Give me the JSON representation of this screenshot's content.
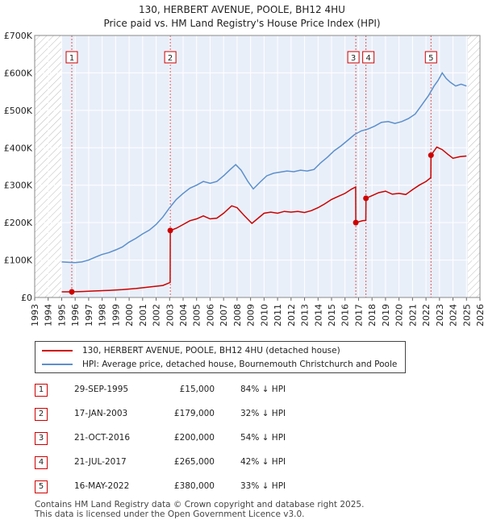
{
  "chart_data": {
    "type": "line",
    "title": "130, HERBERT AVENUE, POOLE, BH12 4HU",
    "subtitle": "Price paid vs. HM Land Registry's House Price Index (HPI)",
    "xlim": [
      1993,
      2026
    ],
    "ylim": [
      0,
      700000
    ],
    "y_ticks": [
      {
        "value": 0,
        "label": "£0"
      },
      {
        "value": 100000,
        "label": "£100K"
      },
      {
        "value": 200000,
        "label": "£200K"
      },
      {
        "value": 300000,
        "label": "£300K"
      },
      {
        "value": 400000,
        "label": "£400K"
      },
      {
        "value": 500000,
        "label": "£500K"
      },
      {
        "value": 600000,
        "label": "£600K"
      },
      {
        "value": 700000,
        "label": "£700K"
      }
    ],
    "x_ticks": [
      "1993",
      "1994",
      "1995",
      "1996",
      "1997",
      "1998",
      "1999",
      "2000",
      "2001",
      "2002",
      "2003",
      "2004",
      "2005",
      "2006",
      "2007",
      "2008",
      "2009",
      "2010",
      "2011",
      "2012",
      "2013",
      "2014",
      "2015",
      "2016",
      "2017",
      "2018",
      "2019",
      "2020",
      "2021",
      "2022",
      "2023",
      "2024",
      "2025",
      "2026"
    ],
    "hatched_ranges": [
      [
        1993,
        1995.0
      ],
      [
        2025.1,
        2026
      ]
    ],
    "shaded_range": [
      1995.0,
      2025.1
    ],
    "series": [
      {
        "name": "130, HERBERT AVENUE, POOLE, BH12 4HU (detached house)",
        "color": "#cc0000",
        "points": [
          [
            1995.0,
            15000
          ],
          [
            1995.75,
            15000
          ],
          [
            1996.5,
            16000
          ],
          [
            1997.5,
            17500
          ],
          [
            1998.5,
            19000
          ],
          [
            1999.5,
            21000
          ],
          [
            2000.5,
            24000
          ],
          [
            2001.5,
            28000
          ],
          [
            2002.5,
            32000
          ],
          [
            2003.04,
            40000
          ],
          [
            2003.05,
            179000
          ],
          [
            2003.5,
            185000
          ],
          [
            2004.0,
            195000
          ],
          [
            2004.5,
            205000
          ],
          [
            2005.0,
            210000
          ],
          [
            2005.5,
            218000
          ],
          [
            2006.0,
            210000
          ],
          [
            2006.5,
            212000
          ],
          [
            2007.0,
            225000
          ],
          [
            2007.6,
            245000
          ],
          [
            2008.0,
            240000
          ],
          [
            2008.5,
            220000
          ],
          [
            2009.1,
            198000
          ],
          [
            2009.5,
            210000
          ],
          [
            2010.0,
            225000
          ],
          [
            2010.5,
            228000
          ],
          [
            2011.0,
            225000
          ],
          [
            2011.5,
            230000
          ],
          [
            2012.0,
            228000
          ],
          [
            2012.5,
            230000
          ],
          [
            2013.0,
            227000
          ],
          [
            2013.5,
            232000
          ],
          [
            2014.0,
            240000
          ],
          [
            2014.5,
            250000
          ],
          [
            2015.0,
            262000
          ],
          [
            2015.5,
            270000
          ],
          [
            2016.0,
            278000
          ],
          [
            2016.5,
            290000
          ],
          [
            2016.79,
            295000
          ],
          [
            2016.8,
            200000
          ],
          [
            2017.3,
            205000
          ],
          [
            2017.54,
            206000
          ],
          [
            2017.55,
            265000
          ],
          [
            2018.0,
            272000
          ],
          [
            2018.5,
            280000
          ],
          [
            2019.0,
            284000
          ],
          [
            2019.5,
            276000
          ],
          [
            2020.0,
            278000
          ],
          [
            2020.5,
            275000
          ],
          [
            2021.0,
            288000
          ],
          [
            2021.5,
            300000
          ],
          [
            2022.0,
            310000
          ],
          [
            2022.36,
            320000
          ],
          [
            2022.37,
            380000
          ],
          [
            2022.8,
            402000
          ],
          [
            2023.2,
            395000
          ],
          [
            2023.6,
            383000
          ],
          [
            2024.0,
            372000
          ],
          [
            2024.5,
            376000
          ],
          [
            2025.0,
            378000
          ]
        ]
      },
      {
        "name": "HPI: Average price, detached house, Bournemouth Christchurch and Poole",
        "color": "#5b8fcc",
        "points": [
          [
            1995.0,
            95000
          ],
          [
            1995.5,
            94000
          ],
          [
            1996.0,
            93000
          ],
          [
            1996.5,
            95000
          ],
          [
            1997.0,
            100000
          ],
          [
            1997.5,
            108000
          ],
          [
            1998.0,
            115000
          ],
          [
            1998.5,
            120000
          ],
          [
            1999.0,
            127000
          ],
          [
            1999.5,
            135000
          ],
          [
            2000.0,
            148000
          ],
          [
            2000.5,
            158000
          ],
          [
            2001.0,
            170000
          ],
          [
            2001.5,
            180000
          ],
          [
            2002.0,
            195000
          ],
          [
            2002.5,
            215000
          ],
          [
            2003.0,
            240000
          ],
          [
            2003.5,
            262000
          ],
          [
            2004.0,
            278000
          ],
          [
            2004.5,
            292000
          ],
          [
            2005.0,
            300000
          ],
          [
            2005.5,
            310000
          ],
          [
            2006.0,
            305000
          ],
          [
            2006.5,
            310000
          ],
          [
            2007.0,
            325000
          ],
          [
            2007.5,
            342000
          ],
          [
            2007.9,
            355000
          ],
          [
            2008.3,
            340000
          ],
          [
            2008.8,
            310000
          ],
          [
            2009.2,
            290000
          ],
          [
            2009.7,
            308000
          ],
          [
            2010.2,
            325000
          ],
          [
            2010.7,
            332000
          ],
          [
            2011.2,
            335000
          ],
          [
            2011.7,
            338000
          ],
          [
            2012.2,
            336000
          ],
          [
            2012.7,
            340000
          ],
          [
            2013.2,
            338000
          ],
          [
            2013.7,
            342000
          ],
          [
            2014.2,
            360000
          ],
          [
            2014.7,
            375000
          ],
          [
            2015.2,
            392000
          ],
          [
            2015.7,
            405000
          ],
          [
            2016.2,
            420000
          ],
          [
            2016.7,
            435000
          ],
          [
            2017.2,
            445000
          ],
          [
            2017.7,
            450000
          ],
          [
            2018.2,
            458000
          ],
          [
            2018.7,
            468000
          ],
          [
            2019.2,
            470000
          ],
          [
            2019.7,
            465000
          ],
          [
            2020.2,
            470000
          ],
          [
            2020.7,
            478000
          ],
          [
            2021.2,
            490000
          ],
          [
            2021.7,
            515000
          ],
          [
            2022.2,
            540000
          ],
          [
            2022.6,
            565000
          ],
          [
            2022.9,
            580000
          ],
          [
            2023.2,
            600000
          ],
          [
            2023.5,
            585000
          ],
          [
            2023.8,
            575000
          ],
          [
            2024.2,
            565000
          ],
          [
            2024.6,
            570000
          ],
          [
            2025.0,
            565000
          ]
        ]
      }
    ],
    "sales": [
      {
        "n": "1",
        "x": 1995.75,
        "price": 15000
      },
      {
        "n": "2",
        "x": 2003.05,
        "price": 179000
      },
      {
        "n": "3",
        "x": 2016.8,
        "price": 200000
      },
      {
        "n": "4",
        "x": 2017.55,
        "price": 265000
      },
      {
        "n": "5",
        "x": 2022.37,
        "price": 380000
      }
    ]
  },
  "legend": {
    "red": "130, HERBERT AVENUE, POOLE, BH12 4HU (detached house)",
    "blue": "HPI: Average price, detached house, Bournemouth Christchurch and Poole"
  },
  "table": [
    {
      "n": "1",
      "date": "29-SEP-1995",
      "price": "£15,000",
      "hpi": "84% ↓ HPI"
    },
    {
      "n": "2",
      "date": "17-JAN-2003",
      "price": "£179,000",
      "hpi": "32% ↓ HPI"
    },
    {
      "n": "3",
      "date": "21-OCT-2016",
      "price": "£200,000",
      "hpi": "54% ↓ HPI"
    },
    {
      "n": "4",
      "date": "21-JUL-2017",
      "price": "£265,000",
      "hpi": "42% ↓ HPI"
    },
    {
      "n": "5",
      "date": "16-MAY-2022",
      "price": "£380,000",
      "hpi": "33% ↓ HPI"
    }
  ],
  "footer": {
    "line1": "Contains HM Land Registry data © Crown copyright and database right 2025.",
    "line2": "This data is licensed under the Open Government Licence v3.0."
  }
}
